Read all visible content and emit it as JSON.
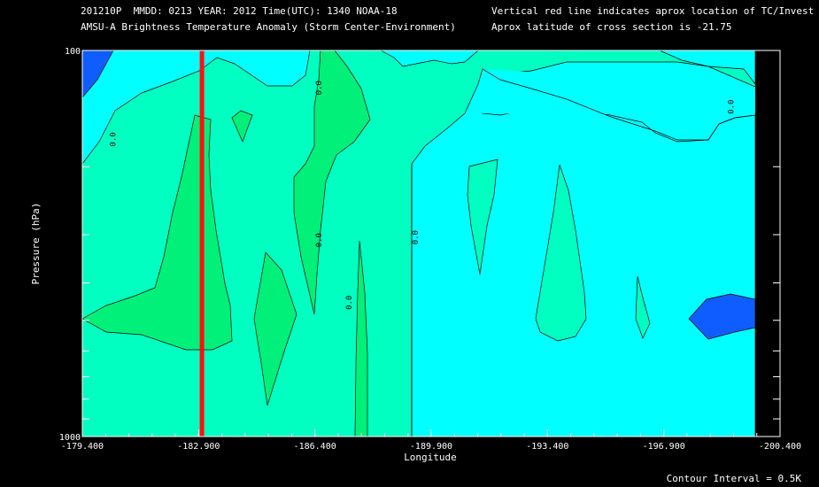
{
  "header": {
    "line1_left": "201210P  MMDD: 0213 YEAR: 2012 Time(UTC): 1340 NOAA-18",
    "line2_left": "AMSU-A Brightness Temperature Anomaly (Storm Center-Environment)",
    "line1_right": "Vertical red line indicates aprox location of TC/Invest",
    "line2_right": "Aprox latitude of cross section is -21.75"
  },
  "footer": {
    "contour_interval": "Contour Interval = 0.5K"
  },
  "chart_data": {
    "type": "contour",
    "xlabel": "Longitude",
    "ylabel": "Pressure (hPa)",
    "xlim": [
      -179.4,
      -200.4
    ],
    "ylim": [
      1000,
      100
    ],
    "y_scale": "log",
    "x_ticks": [
      "-179.400",
      "-182.900",
      "-186.400",
      "-189.900",
      "-193.400",
      "-196.900",
      "-200.400"
    ],
    "y_ticks": [
      "100",
      "1000"
    ],
    "tc_longitude": -183.0,
    "contour_interval_K": 0.5,
    "contour_labels": [
      {
        "text": "0.0",
        "lon": -180.4,
        "p": 170
      },
      {
        "text": "0.0",
        "lon": -186.6,
        "p": 125
      },
      {
        "text": "0.0",
        "lon": -186.6,
        "p": 310
      },
      {
        "text": "0.0",
        "lon": -187.5,
        "p": 450
      },
      {
        "text": "0.0",
        "lon": -189.5,
        "p": 305
      },
      {
        "text": "0.0",
        "lon": -199.0,
        "p": 140
      }
    ],
    "fill_colors": {
      "below_-0.5": "#0f5cff",
      "-0.5_to_0.0": "#00ffff",
      "0.0_to_0.5": "#00ffc0",
      "0.5_to_1.0": "#00f07a"
    },
    "tc_line_color": "#ff1010"
  }
}
